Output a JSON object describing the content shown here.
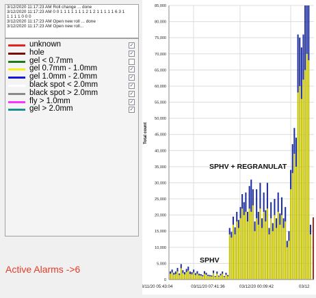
{
  "log": {
    "lines": [
      "3/12/2020 11:17:23 AM  Roll change ... done",
      "3/12/2020 11:17:23 AM  0 0 1 1 1 1 1 1 1 2 1 2 1 1 1 1 1 6 3 1",
      "1 1 1 1 0 0 0",
      "3/12/2020 11:17:23 AM  Open new roll ... done",
      "3/12/2020 11:17:23 AM  Open new roll..."
    ]
  },
  "legend": {
    "items": [
      {
        "label": "unknown",
        "color": "#e8211c",
        "checked": true
      },
      {
        "label": "hole",
        "color": "#7a0a0a",
        "checked": true
      },
      {
        "label": "gel < 0.7mm",
        "color": "#1a7a1a",
        "checked": false
      },
      {
        "label": "gel 0.7mm - 1.0mm",
        "color": "#f2ef1c",
        "checked": true
      },
      {
        "label": "gel 1.0mm - 2.0mm",
        "color": "#1414e0",
        "checked": true
      },
      {
        "label": "black spot < 2.0mm",
        "color": "#ffffff",
        "checked": true
      },
      {
        "label": "black spot > 2.0mm",
        "color": "#8a8a8a",
        "checked": true
      },
      {
        "label": "fly > 1.0mm",
        "color": "#ff33ff",
        "checked": true
      },
      {
        "label": "gel > 2.0mm",
        "color": "#1a9090",
        "checked": true
      }
    ]
  },
  "alarms": {
    "text": "Active Alarms ->6"
  },
  "chart_data": {
    "type": "bar",
    "ylabel": "Total count",
    "ylim": [
      0,
      85000
    ],
    "yticks": [
      "0",
      "5,000",
      "10,000",
      "15,000",
      "20,000",
      "25,000",
      "30,000",
      "35,000",
      "40,000",
      "45,000",
      "50,000",
      "55,000",
      "60,000",
      "65,000",
      "70,000",
      "75,000",
      "80,000",
      "85,000"
    ],
    "xticks": [
      "03/11/20 05:43:04",
      "03/11/20 07:41:36",
      "03/12/20 00:09:42",
      "03/12"
    ],
    "annotations": [
      "SPHV",
      "SPHV + REGRANULAT"
    ],
    "colors": {
      "yellow": "#c8c40a",
      "blue": "#1e2e9c",
      "red": "#a8281c"
    },
    "series": [
      {
        "name": "gel 0.7mm - 1.0mm",
        "values": [
          1800,
          2200,
          1500,
          1700,
          2500,
          1400,
          3500,
          2000,
          1600,
          2300,
          2800,
          1700,
          1600,
          2200,
          1400,
          1800,
          1300,
          1200,
          1000,
          1800,
          1500,
          1100,
          1000,
          900,
          2000,
          800,
          1800,
          900,
          1300,
          1800,
          800,
          1500,
          1000,
          14000,
          13000,
          17000,
          14000,
          18000,
          16000,
          19000,
          22000,
          20000,
          21000,
          18000,
          22000,
          21000,
          23000,
          15000,
          19000,
          17000,
          22000,
          16000,
          21000,
          18000,
          22000,
          14000,
          19000,
          15000,
          20000,
          16000,
          21000,
          17000,
          20000,
          16000,
          18000,
          10000,
          12000,
          28000,
          33000,
          39000,
          35000,
          58000,
          60000,
          56000,
          62000,
          65000,
          70000,
          68000,
          14000
        ]
      },
      {
        "name": "gel 1.0mm - 2.0mm",
        "values": [
          700,
          900,
          600,
          800,
          1100,
          500,
          1300,
          900,
          700,
          1000,
          1200,
          800,
          700,
          900,
          600,
          800,
          500,
          500,
          400,
          800,
          600,
          400,
          400,
          400,
          800,
          300,
          700,
          300,
          500,
          700,
          300,
          600,
          400,
          2000,
          1800,
          2500,
          2200,
          3000,
          2500,
          3500,
          4500,
          4000,
          6000,
          3000,
          7000,
          10000,
          5000,
          3000,
          9000,
          4000,
          8000,
          3000,
          6000,
          3500,
          8000,
          2000,
          5000,
          2500,
          5000,
          3000,
          6000,
          3500,
          5500,
          3000,
          4500,
          2000,
          3000,
          6000,
          9000,
          8000,
          9000,
          18000,
          15000,
          16000,
          14000,
          20000,
          18000,
          25000,
          3000
        ]
      }
    ]
  }
}
